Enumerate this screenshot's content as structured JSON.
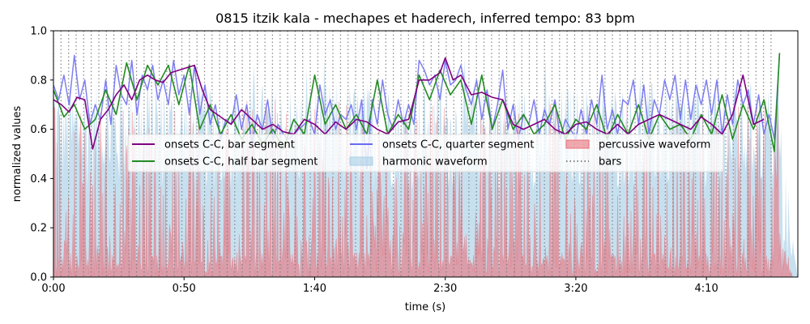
{
  "chart_data": {
    "type": "line",
    "title": "0815 itzik kala - mechapes et haderech, inferred tempo: 83 bpm",
    "xlabel": "time (s)",
    "ylabel": "normalized values",
    "xlim": [
      0,
      285
    ],
    "ylim": [
      0,
      1.0
    ],
    "x_ticks": [
      {
        "value": 0,
        "label": "0:00"
      },
      {
        "value": 50,
        "label": "0:50"
      },
      {
        "value": 100,
        "label": "1:40"
      },
      {
        "value": 150,
        "label": "2:30"
      },
      {
        "value": 200,
        "label": "3:20"
      },
      {
        "value": 250,
        "label": "4:10"
      }
    ],
    "y_ticks": [
      {
        "value": 0.0,
        "label": "0.0"
      },
      {
        "value": 0.2,
        "label": "0.2"
      },
      {
        "value": 0.4,
        "label": "0.4"
      },
      {
        "value": 0.6,
        "label": "0.6"
      },
      {
        "value": 0.8,
        "label": "0.8"
      },
      {
        "value": 1.0,
        "label": "1.0"
      }
    ],
    "tempo_bpm": 83,
    "bar_period_s": 2.892,
    "bars_end_s": 275.0,
    "colors": {
      "bar_segment": "#800080",
      "half_bar_segment": "#228B22",
      "quarter_segment": "#6a6af0",
      "harmonic": "#a9cfe6",
      "percussive": "#e8707a",
      "bars": "#808080"
    },
    "series": [
      {
        "name": "onsets C-C, bar segment",
        "key": "bar_segment",
        "style": "line",
        "keypoints": [
          [
            0,
            0.72
          ],
          [
            3,
            0.7
          ],
          [
            6,
            0.67
          ],
          [
            9,
            0.73
          ],
          [
            12,
            0.72
          ],
          [
            15,
            0.52
          ],
          [
            18,
            0.64
          ],
          [
            21,
            0.68
          ],
          [
            24,
            0.74
          ],
          [
            27,
            0.78
          ],
          [
            30,
            0.72
          ],
          [
            33,
            0.8
          ],
          [
            36,
            0.82
          ],
          [
            39,
            0.8
          ],
          [
            42,
            0.79
          ],
          [
            45,
            0.83
          ],
          [
            48,
            0.84
          ],
          [
            51,
            0.85
          ],
          [
            54,
            0.86
          ],
          [
            57,
            0.76
          ],
          [
            60,
            0.68
          ],
          [
            64,
            0.65
          ],
          [
            68,
            0.62
          ],
          [
            72,
            0.68
          ],
          [
            76,
            0.64
          ],
          [
            80,
            0.6
          ],
          [
            84,
            0.62
          ],
          [
            88,
            0.59
          ],
          [
            92,
            0.58
          ],
          [
            96,
            0.64
          ],
          [
            100,
            0.62
          ],
          [
            104,
            0.58
          ],
          [
            108,
            0.63
          ],
          [
            112,
            0.6
          ],
          [
            116,
            0.64
          ],
          [
            120,
            0.63
          ],
          [
            124,
            0.6
          ],
          [
            128,
            0.58
          ],
          [
            132,
            0.63
          ],
          [
            136,
            0.64
          ],
          [
            140,
            0.8
          ],
          [
            144,
            0.8
          ],
          [
            148,
            0.83
          ],
          [
            150,
            0.89
          ],
          [
            153,
            0.8
          ],
          [
            156,
            0.82
          ],
          [
            160,
            0.74
          ],
          [
            164,
            0.75
          ],
          [
            168,
            0.73
          ],
          [
            172,
            0.72
          ],
          [
            176,
            0.62
          ],
          [
            180,
            0.6
          ],
          [
            184,
            0.62
          ],
          [
            188,
            0.64
          ],
          [
            192,
            0.6
          ],
          [
            196,
            0.58
          ],
          [
            200,
            0.62
          ],
          [
            204,
            0.63
          ],
          [
            208,
            0.6
          ],
          [
            212,
            0.58
          ],
          [
            216,
            0.62
          ],
          [
            220,
            0.58
          ],
          [
            224,
            0.62
          ],
          [
            228,
            0.64
          ],
          [
            232,
            0.66
          ],
          [
            236,
            0.64
          ],
          [
            240,
            0.62
          ],
          [
            244,
            0.6
          ],
          [
            248,
            0.65
          ],
          [
            252,
            0.62
          ],
          [
            256,
            0.58
          ],
          [
            260,
            0.66
          ],
          [
            264,
            0.82
          ],
          [
            268,
            0.62
          ],
          [
            272,
            0.64
          ]
        ]
      },
      {
        "name": "onsets C-C, half bar segment",
        "key": "half_bar_segment",
        "style": "line",
        "keypoints": [
          [
            0,
            0.76
          ],
          [
            4,
            0.65
          ],
          [
            8,
            0.7
          ],
          [
            12,
            0.6
          ],
          [
            16,
            0.64
          ],
          [
            20,
            0.76
          ],
          [
            24,
            0.66
          ],
          [
            28,
            0.87
          ],
          [
            32,
            0.72
          ],
          [
            36,
            0.86
          ],
          [
            40,
            0.78
          ],
          [
            44,
            0.86
          ],
          [
            48,
            0.7
          ],
          [
            52,
            0.86
          ],
          [
            56,
            0.6
          ],
          [
            60,
            0.7
          ],
          [
            64,
            0.58
          ],
          [
            68,
            0.66
          ],
          [
            72,
            0.56
          ],
          [
            76,
            0.62
          ],
          [
            80,
            0.54
          ],
          [
            84,
            0.6
          ],
          [
            88,
            0.52
          ],
          [
            92,
            0.64
          ],
          [
            96,
            0.58
          ],
          [
            100,
            0.82
          ],
          [
            104,
            0.62
          ],
          [
            108,
            0.7
          ],
          [
            112,
            0.6
          ],
          [
            116,
            0.66
          ],
          [
            120,
            0.58
          ],
          [
            124,
            0.8
          ],
          [
            128,
            0.58
          ],
          [
            132,
            0.66
          ],
          [
            136,
            0.6
          ],
          [
            140,
            0.82
          ],
          [
            144,
            0.72
          ],
          [
            148,
            0.84
          ],
          [
            152,
            0.74
          ],
          [
            156,
            0.8
          ],
          [
            160,
            0.62
          ],
          [
            164,
            0.82
          ],
          [
            168,
            0.6
          ],
          [
            172,
            0.72
          ],
          [
            176,
            0.6
          ],
          [
            180,
            0.66
          ],
          [
            184,
            0.58
          ],
          [
            188,
            0.62
          ],
          [
            192,
            0.7
          ],
          [
            196,
            0.56
          ],
          [
            200,
            0.64
          ],
          [
            204,
            0.6
          ],
          [
            208,
            0.7
          ],
          [
            212,
            0.56
          ],
          [
            216,
            0.66
          ],
          [
            220,
            0.58
          ],
          [
            224,
            0.7
          ],
          [
            228,
            0.56
          ],
          [
            232,
            0.66
          ],
          [
            236,
            0.6
          ],
          [
            240,
            0.62
          ],
          [
            244,
            0.56
          ],
          [
            248,
            0.66
          ],
          [
            252,
            0.58
          ],
          [
            256,
            0.74
          ],
          [
            260,
            0.56
          ],
          [
            264,
            0.7
          ],
          [
            268,
            0.6
          ],
          [
            272,
            0.72
          ],
          [
            276,
            0.51
          ],
          [
            278,
            0.91
          ]
        ]
      },
      {
        "name": "onsets C-C, quarter segment",
        "key": "quarter_segment",
        "style": "line",
        "keypoints": [
          [
            0,
            0.78
          ],
          [
            2,
            0.72
          ],
          [
            4,
            0.82
          ],
          [
            6,
            0.7
          ],
          [
            8,
            0.9
          ],
          [
            10,
            0.72
          ],
          [
            12,
            0.8
          ],
          [
            14,
            0.62
          ],
          [
            16,
            0.7
          ],
          [
            18,
            0.64
          ],
          [
            20,
            0.8
          ],
          [
            22,
            0.62
          ],
          [
            24,
            0.86
          ],
          [
            26,
            0.74
          ],
          [
            28,
            0.7
          ],
          [
            30,
            0.88
          ],
          [
            32,
            0.66
          ],
          [
            34,
            0.82
          ],
          [
            36,
            0.76
          ],
          [
            38,
            0.86
          ],
          [
            40,
            0.72
          ],
          [
            42,
            0.8
          ],
          [
            44,
            0.7
          ],
          [
            46,
            0.88
          ],
          [
            48,
            0.74
          ],
          [
            50,
            0.82
          ],
          [
            52,
            0.66
          ],
          [
            54,
            0.86
          ],
          [
            56,
            0.66
          ],
          [
            58,
            0.78
          ],
          [
            60,
            0.62
          ],
          [
            62,
            0.7
          ],
          [
            64,
            0.56
          ],
          [
            66,
            0.64
          ],
          [
            68,
            0.62
          ],
          [
            70,
            0.74
          ],
          [
            72,
            0.6
          ],
          [
            74,
            0.7
          ],
          [
            76,
            0.54
          ],
          [
            78,
            0.66
          ],
          [
            80,
            0.6
          ],
          [
            82,
            0.72
          ],
          [
            84,
            0.56
          ],
          [
            86,
            0.62
          ],
          [
            88,
            0.58
          ],
          [
            90,
            0.56
          ],
          [
            92,
            0.58
          ],
          [
            94,
            0.6
          ],
          [
            96,
            0.62
          ],
          [
            98,
            0.64
          ],
          [
            100,
            0.58
          ],
          [
            102,
            0.78
          ],
          [
            104,
            0.66
          ],
          [
            106,
            0.72
          ],
          [
            108,
            0.6
          ],
          [
            110,
            0.66
          ],
          [
            112,
            0.64
          ],
          [
            114,
            0.7
          ],
          [
            116,
            0.6
          ],
          [
            118,
            0.72
          ],
          [
            120,
            0.44
          ],
          [
            122,
            0.72
          ],
          [
            124,
            0.62
          ],
          [
            126,
            0.8
          ],
          [
            128,
            0.66
          ],
          [
            130,
            0.6
          ],
          [
            132,
            0.72
          ],
          [
            134,
            0.62
          ],
          [
            136,
            0.7
          ],
          [
            138,
            0.62
          ],
          [
            140,
            0.88
          ],
          [
            142,
            0.84
          ],
          [
            144,
            0.78
          ],
          [
            146,
            0.82
          ],
          [
            148,
            0.72
          ],
          [
            150,
            0.88
          ],
          [
            152,
            0.78
          ],
          [
            154,
            0.8
          ],
          [
            156,
            0.86
          ],
          [
            158,
            0.76
          ],
          [
            160,
            0.7
          ],
          [
            162,
            0.8
          ],
          [
            164,
            0.64
          ],
          [
            166,
            0.76
          ],
          [
            168,
            0.6
          ],
          [
            170,
            0.7
          ],
          [
            172,
            0.84
          ],
          [
            174,
            0.6
          ],
          [
            176,
            0.7
          ],
          [
            178,
            0.56
          ],
          [
            180,
            0.66
          ],
          [
            182,
            0.62
          ],
          [
            184,
            0.72
          ],
          [
            186,
            0.58
          ],
          [
            188,
            0.68
          ],
          [
            190,
            0.62
          ],
          [
            192,
            0.72
          ],
          [
            194,
            0.56
          ],
          [
            196,
            0.64
          ],
          [
            198,
            0.6
          ],
          [
            200,
            0.56
          ],
          [
            202,
            0.68
          ],
          [
            204,
            0.58
          ],
          [
            206,
            0.72
          ],
          [
            208,
            0.62
          ],
          [
            210,
            0.82
          ],
          [
            212,
            0.6
          ],
          [
            214,
            0.68
          ],
          [
            216,
            0.58
          ],
          [
            218,
            0.72
          ],
          [
            220,
            0.7
          ],
          [
            222,
            0.8
          ],
          [
            224,
            0.62
          ],
          [
            226,
            0.78
          ],
          [
            228,
            0.58
          ],
          [
            230,
            0.72
          ],
          [
            232,
            0.66
          ],
          [
            234,
            0.8
          ],
          [
            236,
            0.72
          ],
          [
            238,
            0.82
          ],
          [
            240,
            0.64
          ],
          [
            242,
            0.8
          ],
          [
            244,
            0.64
          ],
          [
            246,
            0.78
          ],
          [
            248,
            0.7
          ],
          [
            250,
            0.8
          ],
          [
            252,
            0.66
          ],
          [
            254,
            0.8
          ],
          [
            256,
            0.58
          ],
          [
            258,
            0.74
          ],
          [
            260,
            0.62
          ],
          [
            262,
            0.8
          ],
          [
            264,
            0.7
          ],
          [
            266,
            0.76
          ],
          [
            268,
            0.62
          ],
          [
            270,
            0.74
          ],
          [
            272,
            0.58
          ],
          [
            274,
            0.66
          ],
          [
            276,
            0.56
          ],
          [
            278,
            0.91
          ]
        ]
      },
      {
        "name": "harmonic waveform",
        "key": "harmonic",
        "style": "fill",
        "note": "dense audio envelope, mostly between 0.35 and 0.90, x 0-285 s"
      },
      {
        "name": "percussive waveform",
        "key": "percussive",
        "style": "fill",
        "note": "dense spiky audio envelope, peaks roughly 0.30-0.80, x 0-283 s"
      },
      {
        "name": "bars",
        "key": "bars",
        "style": "vlines",
        "note": "dotted vertical lines at each bar boundary"
      }
    ],
    "legend": {
      "placement": "center-left",
      "entries": [
        {
          "label": "onsets C-C, bar segment",
          "key": "bar_segment",
          "kind": "line"
        },
        {
          "label": "onsets C-C, half bar segment",
          "key": "half_bar_segment",
          "kind": "line"
        },
        {
          "label": "onsets C-C, quarter segment",
          "key": "quarter_segment",
          "kind": "line"
        },
        {
          "label": "harmonic waveform",
          "key": "harmonic",
          "kind": "patch"
        },
        {
          "label": "percussive waveform",
          "key": "percussive",
          "kind": "patch"
        },
        {
          "label": "bars",
          "key": "bars",
          "kind": "dotted"
        }
      ]
    }
  }
}
